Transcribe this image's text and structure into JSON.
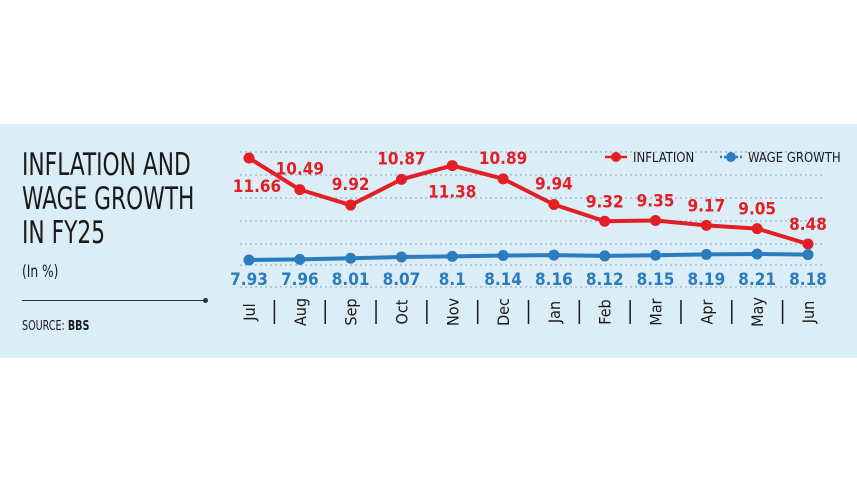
{
  "headline": [
    "INFLATION AND",
    "WAGE GROWTH",
    "IN FY25"
  ],
  "unit": "(In %)",
  "source_label": "SOURCE:",
  "source_name": "BBS",
  "chart_data": {
    "type": "line",
    "categories": [
      "Jul",
      "Aug",
      "Sep",
      "Oct",
      "Nov",
      "Dec",
      "Jan",
      "Feb",
      "Mar",
      "Apr",
      "May",
      "Jun"
    ],
    "series": [
      {
        "name": "INFLATION",
        "color": "#e31e24",
        "labels": [
          "11.66",
          "10.49",
          "9.92",
          "10.87",
          "11.38",
          "10.89",
          "9.94",
          "9.32",
          "9.35",
          "9.17",
          "9.05",
          "8.48"
        ],
        "values": [
          11.66,
          10.49,
          9.92,
          10.87,
          11.38,
          10.89,
          9.94,
          9.32,
          9.35,
          9.17,
          9.05,
          8.48
        ]
      },
      {
        "name": "WAGE GROWTH",
        "color": "#2b7bbf",
        "labels": [
          "7.93",
          "7.96",
          "8.01",
          "8.07",
          "8.1",
          "8.14",
          "8.16",
          "8.12",
          "8.15",
          "8.19",
          "8.21",
          "8.18"
        ],
        "values": [
          7.93,
          7.96,
          8.01,
          8.07,
          8.1,
          8.14,
          8.16,
          8.12,
          8.15,
          8.19,
          8.21,
          8.18
        ]
      }
    ],
    "grid": "dotted horizontal",
    "legend": "top-right"
  }
}
